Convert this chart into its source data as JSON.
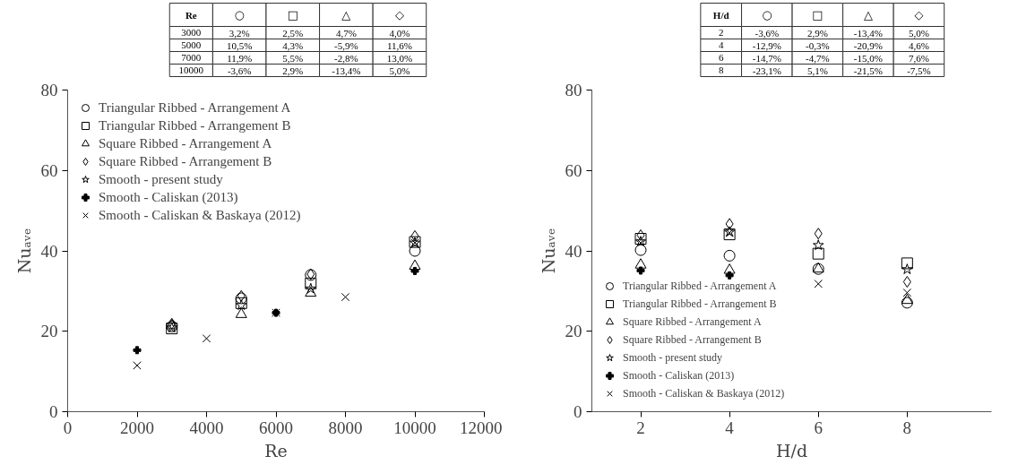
{
  "chart_data": [
    {
      "type": "other",
      "categories": [
        "Re",
        "○",
        "□",
        "△",
        "◇"
      ],
      "cell_labels": [
        [
          "3000",
          "3,2%",
          "2,5%",
          "4,7%",
          "4,0%"
        ],
        [
          "5000",
          "10,5%",
          "4,3%",
          "-5,9%",
          "11,6%"
        ],
        [
          "7000",
          "11,9%",
          "5,5%",
          "-2,8%",
          "13,0%"
        ],
        [
          "10000",
          "-3,6%",
          "2,9%",
          "-13,4%",
          "5,0%"
        ]
      ]
    },
    {
      "type": "other",
      "categories": [
        "H/d",
        "○",
        "□",
        "△",
        "◇"
      ],
      "cell_labels": [
        [
          "2",
          "-3,6%",
          "2,9%",
          "-13,4%",
          "5,0%"
        ],
        [
          "4",
          "-12,9%",
          "-0,3%",
          "-20,9%",
          "4,6%"
        ],
        [
          "6",
          "-14,7%",
          "-4,7%",
          "-15,0%",
          "7,6%"
        ],
        [
          "8",
          "-23,1%",
          "5,1%",
          "-21,5%",
          "-7,5%"
        ]
      ]
    },
    {
      "type": "scatter",
      "xlabel": "Re",
      "ylabel": "Nuₐᵥₑ",
      "xlim": [
        0,
        12000
      ],
      "ylim": [
        0,
        80
      ],
      "xticks": [
        0,
        2000,
        4000,
        6000,
        8000,
        10000,
        12000
      ],
      "yticks": [
        0,
        20,
        40,
        60,
        80
      ],
      "grid": false,
      "legend": "top left",
      "series": [
        {
          "name": "Triangular Ribbed - Arrangement A",
          "color": "#000000",
          "marker": "circle",
          "x": [
            3000,
            5000,
            7000,
            10000
          ],
          "values": [
            21.2,
            28.2,
            34.0,
            40.0
          ]
        },
        {
          "name": "Triangular Ribbed - Arrangement B",
          "color": "#000000",
          "marker": "square",
          "x": [
            3000,
            5000,
            7000,
            10000
          ],
          "values": [
            20.7,
            27.0,
            31.9,
            42.2
          ]
        },
        {
          "name": "Square Ribbed - Arrangement A",
          "color": "#000000",
          "marker": "triangle",
          "x": [
            3000,
            5000,
            7000,
            10000
          ],
          "values": [
            21.4,
            24.2,
            29.5,
            36.2
          ]
        },
        {
          "name": "Square Ribbed - Arrangement B",
          "color": "#000000",
          "marker": "diamond",
          "x": [
            3000,
            5000,
            7000,
            10000
          ],
          "values": [
            21.9,
            28.8,
            34.2,
            43.7
          ]
        },
        {
          "name": "Smooth - present study",
          "color": "#000000",
          "marker": "star",
          "x": [
            3000,
            5000,
            7000,
            10000
          ],
          "values": [
            20.9,
            26.5,
            30.6,
            42.0
          ]
        },
        {
          "name": "Smooth - Caliskan (2013)",
          "color": "#000000",
          "marker": "cross",
          "x": [
            2000,
            6000,
            10000
          ],
          "values": [
            15.3,
            24.6,
            35.0
          ]
        },
        {
          "name": "Smooth - Caliskan & Baskaya (2012)",
          "color": "#000000",
          "marker": "x",
          "x": [
            2000,
            4000,
            6000,
            8000,
            10000
          ],
          "values": [
            11.5,
            18.2,
            24.6,
            28.5,
            42.0
          ]
        }
      ]
    },
    {
      "type": "scatter",
      "xlabel": "H/d",
      "ylabel": "Nuₐᵥₑ",
      "xlim": [
        0.9,
        9.9
      ],
      "ylim": [
        0,
        80
      ],
      "xticks": [
        2,
        4,
        6,
        8
      ],
      "yticks": [
        0,
        20,
        40,
        60,
        80
      ],
      "grid": false,
      "legend": "bottom left",
      "series": [
        {
          "name": "Triangular Ribbed - Arrangement A",
          "color": "#000000",
          "marker": "circle",
          "x": [
            2,
            4,
            6,
            8
          ],
          "values": [
            40.2,
            38.8,
            35.5,
            27.1
          ]
        },
        {
          "name": "Triangular Ribbed - Arrangement B",
          "color": "#000000",
          "marker": "square",
          "x": [
            2,
            4,
            6,
            8
          ],
          "values": [
            43.0,
            44.1,
            39.3,
            36.9
          ]
        },
        {
          "name": "Square Ribbed - Arrangement A",
          "color": "#000000",
          "marker": "triangle",
          "x": [
            2,
            4,
            6,
            8
          ],
          "values": [
            36.5,
            35.2,
            35.5,
            27.7
          ]
        },
        {
          "name": "Square Ribbed - Arrangement B",
          "color": "#000000",
          "marker": "diamond",
          "x": [
            2,
            4,
            6,
            8
          ],
          "values": [
            43.9,
            46.7,
            44.3,
            32.3
          ]
        },
        {
          "name": "Smooth - present study",
          "color": "#000000",
          "marker": "star",
          "x": [
            2,
            4,
            6,
            8
          ],
          "values": [
            42.3,
            44.7,
            41.4,
            35.4
          ]
        },
        {
          "name": "Smooth - Caliskan (2013)",
          "color": "#000000",
          "marker": "cross",
          "x": [
            2,
            4
          ],
          "values": [
            35.1,
            33.9
          ]
        },
        {
          "name": "Smooth - Caliskan & Baskaya (2012)",
          "color": "#000000",
          "marker": "x",
          "x": [
            2,
            4,
            6,
            8
          ],
          "values": [
            42.0,
            44.5,
            31.8,
            29.6
          ]
        }
      ]
    }
  ]
}
